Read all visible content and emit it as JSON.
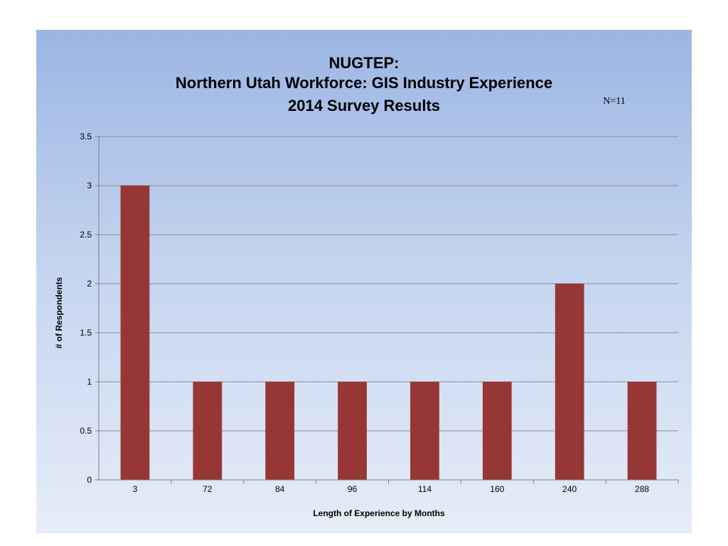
{
  "chart_data": {
    "type": "bar",
    "title_lines": [
      "NUGTEP:",
      "Northern Utah Workforce: GIS Industry Experience",
      "2014 Survey Results"
    ],
    "annotation": "N=11",
    "xlabel": "Length of Experience by Months",
    "ylabel": "# of Respondents",
    "categories": [
      "3",
      "72",
      "84",
      "96",
      "114",
      "160",
      "240",
      "288"
    ],
    "values": [
      3,
      1,
      1,
      1,
      1,
      1,
      2,
      1
    ],
    "ylim": [
      0,
      3.5
    ],
    "yticks": [
      "0",
      "0.5",
      "1",
      "1.5",
      "2",
      "2.5",
      "3",
      "3.5"
    ],
    "grid": true,
    "legend": "none",
    "bar_color": "#973735",
    "background_top": "#9bb5e3",
    "background_bottom": "#e6edf8"
  }
}
